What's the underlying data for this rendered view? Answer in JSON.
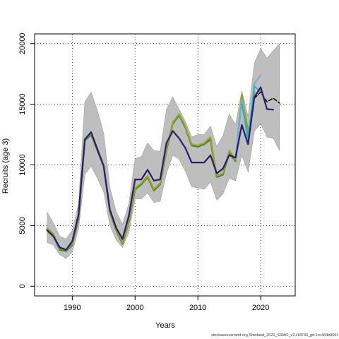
{
  "chart_data": {
    "type": "line",
    "xlabel": "Years",
    "ylabel": "Recruits (age 3)",
    "xlim": [
      1984,
      2025.5
    ],
    "ylim": [
      -800,
      20800
    ],
    "xticks": [
      1990,
      2000,
      2010,
      2020
    ],
    "yticks": [
      0,
      5000,
      10000,
      15000,
      20000
    ],
    "grid": true,
    "footnote": "stockassessment.org,Shetland_2022_SSMO_v2,r18740_git:1cc464b806f",
    "band": {
      "color": "#bebebe",
      "x": [
        1986,
        1987,
        1988,
        1989,
        1990,
        1991,
        1992,
        1993,
        1994,
        1995,
        1996,
        1997,
        1998,
        1999,
        2000,
        2001,
        2002,
        2003,
        2004,
        2005,
        2006,
        2007,
        2008,
        2009,
        2010,
        2011,
        2012,
        2013,
        2014,
        2015,
        2016,
        2017,
        2018,
        2019,
        2020,
        2021,
        2022,
        2023
      ],
      "upper": [
        6100,
        5200,
        4100,
        3900,
        4600,
        6800,
        15200,
        16000,
        14500,
        12600,
        8100,
        6100,
        5100,
        6800,
        10500,
        10700,
        11800,
        11200,
        11100,
        14600,
        15600,
        14600,
        13600,
        12300,
        12500,
        12500,
        13200,
        11500,
        12400,
        14200,
        13300,
        16100,
        14000,
        18400,
        19600,
        18800,
        19400,
        20000
      ],
      "lower": [
        3600,
        3400,
        2600,
        2300,
        2800,
        4700,
        9200,
        9900,
        8900,
        7800,
        5000,
        3800,
        3200,
        4400,
        7200,
        7200,
        7700,
        6900,
        7000,
        9300,
        10800,
        10500,
        9500,
        8200,
        8100,
        8000,
        8600,
        7100,
        7600,
        8900,
        8700,
        10800,
        9400,
        12800,
        13400,
        12300,
        12200,
        11200
      ]
    },
    "series": [
      {
        "color": "#3a8a28",
        "width": 2.4,
        "dash": "",
        "x": [
          1986,
          1987,
          1988,
          1989,
          1990,
          1991,
          1992,
          1993,
          1994,
          1995,
          1996,
          1997,
          1998,
          1999,
          2000,
          2001,
          2002,
          2003,
          2004,
          2005,
          2006,
          2007,
          2008,
          2009,
          2010,
          2011,
          2012,
          2013,
          2014,
          2015,
          2016,
          2017,
          2018
        ],
        "y": [
          4700,
          4200,
          3000,
          2900,
          3400,
          5600,
          12000,
          12500,
          11200,
          9900,
          6100,
          4600,
          3500,
          5300,
          8000,
          8400,
          9000,
          7900,
          8400,
          11200,
          13400,
          14100,
          13100,
          11600,
          11500,
          11700,
          12100,
          9000,
          9200,
          11000,
          10300,
          15600,
          12700
        ]
      },
      {
        "color": "#9aa22c",
        "width": 2.2,
        "dash": "",
        "x": [
          1986,
          1987,
          1988,
          1989,
          1990,
          1991,
          1992,
          1993,
          1994,
          1995,
          1996,
          1997,
          1998,
          1999,
          2000,
          2001,
          2002,
          2003,
          2004,
          2005,
          2006,
          2007,
          2008,
          2009,
          2010,
          2011,
          2012,
          2013,
          2014,
          2015,
          2016,
          2017,
          2018,
          2019
        ],
        "y": [
          4800,
          4300,
          3100,
          3000,
          3500,
          5800,
          12100,
          12600,
          11300,
          10000,
          6200,
          4700,
          3600,
          5400,
          8100,
          8500,
          9100,
          8000,
          8500,
          11300,
          13500,
          14200,
          13200,
          11700,
          11600,
          11800,
          12300,
          9100,
          9300,
          11200,
          10400,
          15800,
          12500,
          16000
        ]
      },
      {
        "color": "#6fb0d8",
        "width": 2.2,
        "dash": "",
        "x": [
          2016,
          2017,
          2018,
          2019,
          2020
        ],
        "y": [
          10500,
          15300,
          11800,
          16700,
          17400
        ]
      },
      {
        "color": "#2bb1b1",
        "width": 1.8,
        "dash": "",
        "x": [
          2017,
          2018,
          2019,
          2020
        ],
        "y": [
          15000,
          12200,
          16500,
          16000
        ]
      },
      {
        "color": "#000000",
        "width": 1.5,
        "dash": "5,3",
        "x": [
          2019,
          2020,
          2021,
          2022,
          2023
        ],
        "y": [
          15500,
          16000,
          15200,
          15500,
          15100
        ]
      },
      {
        "color": "#2b1a6e",
        "width": 2.2,
        "dash": "",
        "x": [
          1986,
          1987,
          1988,
          1989,
          1990,
          1991,
          1992,
          1993,
          1994,
          1995,
          1996,
          1997,
          1998,
          1999,
          2000,
          2001,
          2002,
          2003,
          2004,
          2005,
          2006,
          2007,
          2008,
          2009,
          2010,
          2011,
          2012,
          2013,
          2014,
          2015,
          2016,
          2017,
          2018,
          2019,
          2020,
          2021,
          2022
        ],
        "y": [
          4600,
          4100,
          3200,
          3000,
          3700,
          5900,
          12100,
          12700,
          11300,
          9900,
          6300,
          4800,
          3900,
          5800,
          8800,
          8800,
          9600,
          8700,
          8800,
          11800,
          12800,
          12200,
          11400,
          10200,
          10200,
          10200,
          10800,
          9300,
          9700,
          10800,
          10600,
          13300,
          11700,
          15600,
          16400,
          14600,
          14550
        ]
      }
    ]
  }
}
